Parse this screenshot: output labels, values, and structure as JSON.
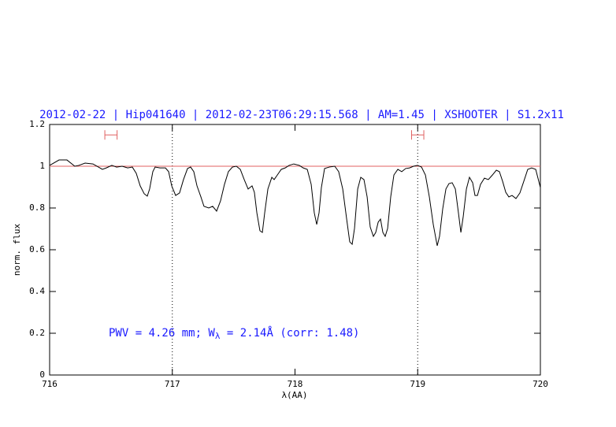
{
  "chart_data": {
    "type": "line",
    "title": "2012-02-22 | Hip041640 | 2012-02-23T06:29:15.568 | AM=1.45 | XSHOOTER | S1.2x11",
    "x_label": "λ(AA)",
    "y_label": "norm. flux",
    "annotation": [
      "PWV = 4.26 mm; W",
      "λ",
      " = 2.14Å (corr: 1.48)"
    ],
    "xlim": [
      716,
      720
    ],
    "xticks": [
      716,
      717,
      718,
      719,
      720
    ],
    "ylim": [
      0,
      1.2
    ],
    "yticks": [
      0,
      0.2,
      0.4,
      0.6,
      0.8,
      1,
      1.2
    ],
    "reference_line": {
      "value": 1,
      "color": "#e06060"
    },
    "vlines": [
      717,
      719
    ],
    "markers": [
      {
        "x": [
          716.45,
          716.55
        ],
        "y": 1.15
      },
      {
        "x": [
          718.95,
          719.05
        ],
        "y": 1.15
      }
    ],
    "marker_color": "#e06060",
    "series": [
      {
        "color": "#000000",
        "x": [
          716.0,
          716.077,
          716.141,
          716.205,
          716.238,
          716.289,
          716.353,
          716.398,
          716.43,
          716.462,
          716.507,
          716.546,
          716.591,
          716.636,
          716.674,
          716.706,
          716.738,
          716.771,
          716.796,
          716.815,
          716.841,
          716.86,
          716.899,
          716.944,
          716.97,
          716.995,
          717.027,
          717.059,
          717.091,
          717.124,
          717.149,
          717.175,
          717.201,
          717.233,
          717.258,
          717.297,
          717.329,
          717.361,
          717.393,
          717.425,
          717.457,
          717.49,
          717.522,
          717.554,
          717.586,
          717.618,
          717.65,
          717.669,
          717.689,
          717.714,
          717.734,
          717.753,
          717.779,
          717.811,
          717.83,
          717.856,
          717.888,
          717.92,
          717.952,
          717.99,
          718.035,
          718.067,
          718.1,
          718.132,
          718.157,
          718.177,
          718.196,
          718.215,
          718.241,
          718.279,
          718.324,
          718.356,
          718.389,
          718.421,
          718.446,
          718.466,
          718.485,
          718.511,
          718.536,
          718.562,
          718.588,
          718.613,
          718.639,
          718.658,
          718.678,
          718.697,
          718.716,
          718.735,
          718.755,
          718.78,
          718.806,
          718.838,
          718.87,
          718.902,
          718.934,
          718.966,
          718.999,
          719.031,
          719.063,
          719.095,
          719.127,
          719.159,
          719.178,
          719.204,
          719.23,
          719.255,
          719.281,
          719.307,
          719.332,
          719.352,
          719.371,
          719.397,
          719.422,
          719.448,
          719.467,
          719.487,
          719.512,
          719.544,
          719.576,
          719.609,
          719.641,
          719.666,
          719.692,
          719.718,
          719.743,
          719.769,
          719.801,
          719.833,
          719.865,
          719.897,
          719.929,
          719.962,
          720.0
        ],
        "values": [
          1.004,
          1.03,
          1.03,
          1.0,
          1.004,
          1.015,
          1.011,
          0.996,
          0.985,
          0.992,
          1.004,
          0.996,
          1.0,
          0.992,
          0.996,
          0.966,
          0.906,
          0.868,
          0.857,
          0.891,
          0.974,
          0.996,
          0.992,
          0.992,
          0.974,
          0.906,
          0.86,
          0.872,
          0.936,
          0.989,
          0.996,
          0.974,
          0.906,
          0.853,
          0.808,
          0.8,
          0.808,
          0.785,
          0.834,
          0.913,
          0.974,
          0.996,
          1.0,
          0.985,
          0.936,
          0.891,
          0.906,
          0.875,
          0.777,
          0.691,
          0.683,
          0.777,
          0.891,
          0.947,
          0.936,
          0.958,
          0.985,
          0.992,
          1.004,
          1.011,
          1.004,
          0.992,
          0.985,
          0.913,
          0.777,
          0.721,
          0.777,
          0.898,
          0.989,
          0.996,
          1.0,
          0.974,
          0.891,
          0.747,
          0.638,
          0.626,
          0.702,
          0.891,
          0.947,
          0.936,
          0.853,
          0.709,
          0.664,
          0.683,
          0.732,
          0.747,
          0.683,
          0.664,
          0.702,
          0.853,
          0.958,
          0.985,
          0.974,
          0.989,
          0.992,
          1.0,
          1.004,
          0.996,
          0.958,
          0.853,
          0.721,
          0.619,
          0.664,
          0.796,
          0.891,
          0.917,
          0.921,
          0.891,
          0.777,
          0.683,
          0.758,
          0.891,
          0.947,
          0.921,
          0.86,
          0.86,
          0.913,
          0.943,
          0.936,
          0.958,
          0.981,
          0.974,
          0.928,
          0.875,
          0.853,
          0.86,
          0.845,
          0.872,
          0.928,
          0.985,
          0.992,
          0.985,
          0.898
        ]
      }
    ]
  }
}
